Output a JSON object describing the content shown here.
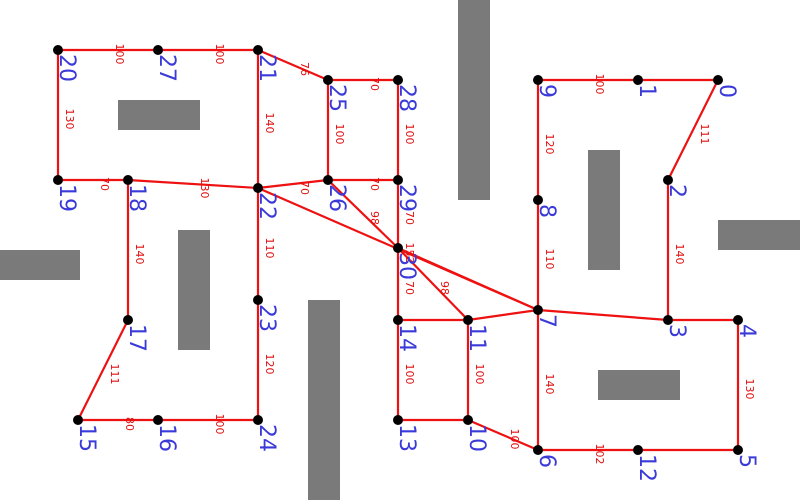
{
  "colors": {
    "background": "#ffffff",
    "obstacle": "#7a7a7a",
    "edge": "#ee1111",
    "node_fill": "#000000",
    "node_label": "#3a3ad8",
    "edge_label": "#e01010"
  },
  "nodes": [
    {
      "id": "0",
      "label": "0"
    },
    {
      "id": "1",
      "label": "1"
    },
    {
      "id": "2",
      "label": "2"
    },
    {
      "id": "3",
      "label": "3"
    },
    {
      "id": "4",
      "label": "4"
    },
    {
      "id": "5",
      "label": "5"
    },
    {
      "id": "6",
      "label": "6"
    },
    {
      "id": "7",
      "label": "7"
    },
    {
      "id": "8",
      "label": "8"
    },
    {
      "id": "9",
      "label": "9"
    },
    {
      "id": "10",
      "label": "10"
    },
    {
      "id": "11",
      "label": "11"
    },
    {
      "id": "12",
      "label": "12"
    },
    {
      "id": "13",
      "label": "13"
    },
    {
      "id": "14",
      "label": "14"
    },
    {
      "id": "15",
      "label": "15"
    },
    {
      "id": "16",
      "label": "16"
    },
    {
      "id": "17",
      "label": "17"
    },
    {
      "id": "18",
      "label": "18"
    },
    {
      "id": "19",
      "label": "19"
    },
    {
      "id": "20",
      "label": "20"
    },
    {
      "id": "21",
      "label": "21"
    },
    {
      "id": "22",
      "label": "22"
    },
    {
      "id": "23",
      "label": "23"
    },
    {
      "id": "24",
      "label": "24"
    },
    {
      "id": "25",
      "label": "25"
    },
    {
      "id": "26",
      "label": "26"
    },
    {
      "id": "27",
      "label": "27"
    },
    {
      "id": "28",
      "label": "28"
    },
    {
      "id": "29",
      "label": "29"
    },
    {
      "id": "30",
      "label": "30"
    }
  ],
  "edges": [
    {
      "from": "20",
      "to": "27",
      "weight": "100"
    },
    {
      "from": "27",
      "to": "21",
      "weight": "100"
    },
    {
      "from": "21",
      "to": "25",
      "weight": "76"
    },
    {
      "from": "25",
      "to": "28",
      "weight": "70"
    },
    {
      "from": "20",
      "to": "19",
      "weight": "130"
    },
    {
      "from": "19",
      "to": "18",
      "weight": "70"
    },
    {
      "from": "18",
      "to": "22",
      "weight": "130"
    },
    {
      "from": "21",
      "to": "22",
      "weight": "140"
    },
    {
      "from": "25",
      "to": "26",
      "weight": "100"
    },
    {
      "from": "28",
      "to": "29",
      "weight": "100"
    },
    {
      "from": "22",
      "to": "26",
      "weight": "70"
    },
    {
      "from": "26",
      "to": "29",
      "weight": "70"
    },
    {
      "from": "22",
      "to": "7",
      "weight": "152"
    },
    {
      "from": "26",
      "to": "30",
      "weight": "98"
    },
    {
      "from": "29",
      "to": "30",
      "weight": "70"
    },
    {
      "from": "22",
      "to": "23",
      "weight": "110"
    },
    {
      "from": "23",
      "to": "24",
      "weight": "120"
    },
    {
      "from": "18",
      "to": "17",
      "weight": "140"
    },
    {
      "from": "17",
      "to": "15",
      "weight": "111"
    },
    {
      "from": "15",
      "to": "16",
      "weight": "80"
    },
    {
      "from": "16",
      "to": "24",
      "weight": "100"
    },
    {
      "from": "30",
      "to": "14",
      "weight": "70"
    },
    {
      "from": "30",
      "to": "11",
      "weight": "98"
    },
    {
      "from": "30",
      "to": "7",
      "weight": ""
    },
    {
      "from": "14",
      "to": "11",
      "weight": ""
    },
    {
      "from": "11",
      "to": "7",
      "weight": ""
    },
    {
      "from": "14",
      "to": "13",
      "weight": "100"
    },
    {
      "from": "13",
      "to": "10",
      "weight": ""
    },
    {
      "from": "11",
      "to": "10",
      "weight": "100"
    },
    {
      "from": "10",
      "to": "6",
      "weight": "100"
    },
    {
      "from": "9",
      "to": "1",
      "weight": "100"
    },
    {
      "from": "1",
      "to": "0",
      "weight": ""
    },
    {
      "from": "0",
      "to": "2",
      "weight": "111"
    },
    {
      "from": "9",
      "to": "8",
      "weight": "120"
    },
    {
      "from": "8",
      "to": "7",
      "weight": "110"
    },
    {
      "from": "2",
      "to": "3",
      "weight": "140"
    },
    {
      "from": "7",
      "to": "3",
      "weight": ""
    },
    {
      "from": "3",
      "to": "4",
      "weight": ""
    },
    {
      "from": "7",
      "to": "6",
      "weight": "140"
    },
    {
      "from": "4",
      "to": "5",
      "weight": "130"
    },
    {
      "from": "6",
      "to": "12",
      "weight": "102"
    },
    {
      "from": "12",
      "to": "5",
      "weight": ""
    }
  ]
}
